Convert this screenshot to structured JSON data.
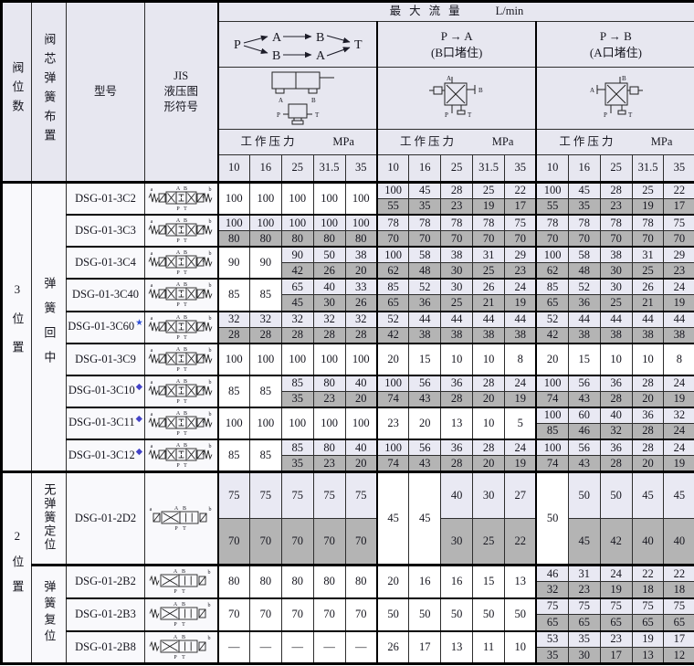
{
  "colors": {
    "lavender": "#e9e9f3",
    "gray": "#b4b4b4",
    "headerbg": "#e7e7f0",
    "star": "#2f50d8",
    "diamond": "#4444c8"
  },
  "header": {
    "col1": "阀位数",
    "col2": "阀芯弹簧布置",
    "col3": "型号",
    "col4_line1": "JIS",
    "col4_line2": "液压图形符号",
    "max_flow_title": "最大流量",
    "max_flow_unit": "L/min",
    "pressures": [
      "10",
      "16",
      "25",
      "31.5",
      "35"
    ],
    "groups": [
      {
        "pressure_label": "工作压力",
        "pressure_unit": "MPa"
      },
      {
        "title": "P → A",
        "subtitle": "(B口堵住)",
        "pressure_label": "工作压力",
        "pressure_unit": "MPa"
      },
      {
        "title": "P → B",
        "subtitle": "(A口堵住)",
        "pressure_label": "工作压力",
        "pressure_unit": "MPa"
      }
    ],
    "diagram": {
      "p": "P",
      "a_top": "A",
      "b_top": "B",
      "b_bot": "B",
      "a_bot": "A",
      "t": "T"
    }
  },
  "sym": {
    "A": "A",
    "B": "B",
    "P": "P",
    "T": "T",
    "a": "a",
    "b": "b"
  },
  "body": {
    "sections": [
      {
        "positions": "3位置",
        "groups": [
          {
            "spring": "弹簧回中",
            "models": [
              {
                "name": "DSG-01-3C2",
                "mark": "",
                "symbol": "valve-3pos-icon",
                "flows": [
                  [
                    100,
                    100,
                    100,
                    100,
                    100
                  ],
                  [
                    [
                      100,
                      55
                    ],
                    [
                      45,
                      35
                    ],
                    [
                      28,
                      23
                    ],
                    [
                      25,
                      19
                    ],
                    [
                      22,
                      17
                    ]
                  ],
                  [
                    [
                      100,
                      55
                    ],
                    [
                      45,
                      35
                    ],
                    [
                      28,
                      23
                    ],
                    [
                      25,
                      19
                    ],
                    [
                      22,
                      17
                    ]
                  ]
                ]
              },
              {
                "name": "DSG-01-3C3",
                "mark": "",
                "symbol": "valve-3pos-icon",
                "flows": [
                  [
                    [
                      100,
                      80
                    ],
                    [
                      100,
                      80
                    ],
                    [
                      100,
                      80
                    ],
                    [
                      100,
                      80
                    ],
                    [
                      100,
                      80
                    ]
                  ],
                  [
                    [
                      78,
                      70
                    ],
                    [
                      78,
                      70
                    ],
                    [
                      78,
                      70
                    ],
                    [
                      78,
                      70
                    ],
                    [
                      75,
                      70
                    ]
                  ],
                  [
                    [
                      78,
                      70
                    ],
                    [
                      78,
                      70
                    ],
                    [
                      78,
                      70
                    ],
                    [
                      78,
                      70
                    ],
                    [
                      75,
                      70
                    ]
                  ]
                ]
              },
              {
                "name": "DSG-01-3C4",
                "mark": "",
                "symbol": "valve-3pos-icon",
                "flows": [
                  [
                    90,
                    90,
                    [
                      90,
                      42
                    ],
                    [
                      50,
                      26
                    ],
                    [
                      38,
                      20
                    ]
                  ],
                  [
                    [
                      100,
                      62
                    ],
                    [
                      58,
                      48
                    ],
                    [
                      38,
                      30
                    ],
                    [
                      31,
                      25
                    ],
                    [
                      29,
                      23
                    ]
                  ],
                  [
                    [
                      100,
                      62
                    ],
                    [
                      58,
                      48
                    ],
                    [
                      38,
                      30
                    ],
                    [
                      31,
                      25
                    ],
                    [
                      29,
                      23
                    ]
                  ]
                ]
              },
              {
                "name": "DSG-01-3C40",
                "mark": "",
                "symbol": "valve-3pos-icon",
                "flows": [
                  [
                    85,
                    85,
                    [
                      65,
                      45
                    ],
                    [
                      40,
                      30
                    ],
                    [
                      33,
                      26
                    ]
                  ],
                  [
                    [
                      85,
                      65
                    ],
                    [
                      52,
                      36
                    ],
                    [
                      30,
                      25
                    ],
                    [
                      26,
                      21
                    ],
                    [
                      24,
                      19
                    ]
                  ],
                  [
                    [
                      85,
                      65
                    ],
                    [
                      52,
                      36
                    ],
                    [
                      30,
                      25
                    ],
                    [
                      26,
                      21
                    ],
                    [
                      24,
                      19
                    ]
                  ]
                ]
              },
              {
                "name": "DSG-01-3C60",
                "mark": "★",
                "symbol": "valve-3pos-icon",
                "flows": [
                  [
                    [
                      32,
                      28
                    ],
                    [
                      32,
                      28
                    ],
                    [
                      32,
                      28
                    ],
                    [
                      32,
                      28
                    ],
                    [
                      32,
                      28
                    ]
                  ],
                  [
                    [
                      52,
                      42
                    ],
                    [
                      44,
                      38
                    ],
                    [
                      44,
                      38
                    ],
                    [
                      44,
                      38
                    ],
                    [
                      44,
                      38
                    ]
                  ],
                  [
                    [
                      52,
                      42
                    ],
                    [
                      44,
                      38
                    ],
                    [
                      44,
                      38
                    ],
                    [
                      44,
                      38
                    ],
                    [
                      44,
                      38
                    ]
                  ]
                ]
              },
              {
                "name": "DSG-01-3C9",
                "mark": "",
                "symbol": "valve-3pos-icon",
                "flows": [
                  [
                    100,
                    100,
                    100,
                    100,
                    100
                  ],
                  [
                    20,
                    15,
                    10,
                    10,
                    8
                  ],
                  [
                    20,
                    15,
                    10,
                    10,
                    8
                  ]
                ]
              },
              {
                "name": "DSG-01-3C10",
                "mark": "◆",
                "symbol": "valve-3pos-icon",
                "flows": [
                  [
                    85,
                    85,
                    [
                      85,
                      35
                    ],
                    [
                      80,
                      23
                    ],
                    [
                      40,
                      20
                    ]
                  ],
                  [
                    [
                      100,
                      74
                    ],
                    [
                      56,
                      43
                    ],
                    [
                      36,
                      28
                    ],
                    [
                      28,
                      20
                    ],
                    [
                      24,
                      19
                    ]
                  ],
                  [
                    [
                      100,
                      74
                    ],
                    [
                      56,
                      43
                    ],
                    [
                      36,
                      28
                    ],
                    [
                      28,
                      20
                    ],
                    [
                      24,
                      19
                    ]
                  ]
                ]
              },
              {
                "name": "DSG-01-3C11",
                "mark": "◆",
                "symbol": "valve-3pos-icon",
                "flows": [
                  [
                    100,
                    100,
                    100,
                    100,
                    100
                  ],
                  [
                    23,
                    20,
                    13,
                    10,
                    5
                  ],
                  [
                    [
                      100,
                      85
                    ],
                    [
                      60,
                      46
                    ],
                    [
                      40,
                      32
                    ],
                    [
                      36,
                      28
                    ],
                    [
                      32,
                      24
                    ]
                  ]
                ]
              },
              {
                "name": "DSG-01-3C12",
                "mark": "◆",
                "symbol": "valve-3pos-icon",
                "flows": [
                  [
                    85,
                    85,
                    [
                      85,
                      35
                    ],
                    [
                      80,
                      23
                    ],
                    [
                      40,
                      20
                    ]
                  ],
                  [
                    [
                      100,
                      74
                    ],
                    [
                      56,
                      43
                    ],
                    [
                      36,
                      28
                    ],
                    [
                      28,
                      20
                    ],
                    [
                      24,
                      19
                    ]
                  ],
                  [
                    [
                      100,
                      74
                    ],
                    [
                      56,
                      43
                    ],
                    [
                      36,
                      28
                    ],
                    [
                      28,
                      20
                    ],
                    [
                      24,
                      19
                    ]
                  ]
                ]
              }
            ]
          }
        ]
      },
      {
        "positions": "2位置",
        "groups": [
          {
            "spring": "无弹簧定位",
            "models": [
              {
                "name": "DSG-01-2D2",
                "mark": "",
                "symbol": "valve-2pos-detent-icon",
                "flows": [
                  [
                    [
                      75,
                      70
                    ],
                    [
                      75,
                      70
                    ],
                    [
                      75,
                      70
                    ],
                    [
                      75,
                      70
                    ],
                    [
                      75,
                      70
                    ]
                  ],
                  [
                    45,
                    45,
                    [
                      40,
                      30
                    ],
                    [
                      30,
                      25
                    ],
                    [
                      27,
                      22
                    ]
                  ],
                  [
                    50,
                    [
                      50,
                      45
                    ],
                    [
                      50,
                      42
                    ],
                    [
                      45,
                      40
                    ],
                    [
                      45,
                      40
                    ]
                  ]
                ]
              }
            ]
          },
          {
            "spring": "弹簧复位",
            "models": [
              {
                "name": "DSG-01-2B2",
                "mark": "",
                "symbol": "valve-2pos-spring-icon",
                "flows": [
                  [
                    80,
                    80,
                    80,
                    80,
                    80
                  ],
                  [
                    20,
                    16,
                    16,
                    15,
                    13
                  ],
                  [
                    [
                      46,
                      32
                    ],
                    [
                      31,
                      23
                    ],
                    [
                      24,
                      19
                    ],
                    [
                      22,
                      18
                    ],
                    [
                      22,
                      18
                    ]
                  ]
                ]
              },
              {
                "name": "DSG-01-2B3",
                "mark": "",
                "symbol": "valve-2pos-spring-icon",
                "flows": [
                  [
                    70,
                    70,
                    70,
                    70,
                    70
                  ],
                  [
                    50,
                    50,
                    50,
                    50,
                    50
                  ],
                  [
                    [
                      75,
                      65
                    ],
                    [
                      75,
                      65
                    ],
                    [
                      75,
                      65
                    ],
                    [
                      75,
                      65
                    ],
                    [
                      75,
                      65
                    ]
                  ]
                ]
              },
              {
                "name": "DSG-01-2B8",
                "mark": "",
                "symbol": "valve-2pos-spring-icon",
                "flows": [
                  [
                    "—",
                    "—",
                    "—",
                    "—",
                    "—"
                  ],
                  [
                    26,
                    17,
                    13,
                    11,
                    10
                  ],
                  [
                    [
                      53,
                      35
                    ],
                    [
                      35,
                      30
                    ],
                    [
                      23,
                      17
                    ],
                    [
                      19,
                      13
                    ],
                    [
                      17,
                      12
                    ]
                  ]
                ]
              }
            ]
          }
        ]
      }
    ]
  }
}
